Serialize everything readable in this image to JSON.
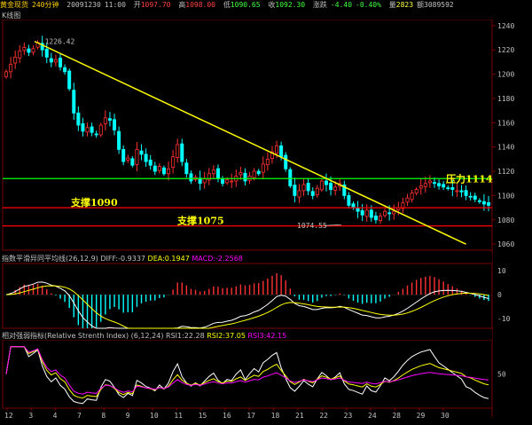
{
  "header": {
    "instrument": "黄金现货",
    "period": "240分钟",
    "date": "20091230",
    "time": "11:00",
    "open_label": "开",
    "open": "1097.70",
    "high_label": "高",
    "high": "1098.00",
    "low_label": "低",
    "low": "1090.65",
    "close_label": "收",
    "close": "1092.30",
    "change_label": "涨跌",
    "change": "-4.40",
    "change_pct": "-0.40%",
    "vol_label": "量",
    "vol": "2823",
    "amount_label": "额",
    "amount": "3089592"
  },
  "colors": {
    "up": "#ff3030",
    "down": "#00ffff",
    "grid": "#7a0000",
    "trend": "#ffff00",
    "resistance": "#00ff00",
    "support": "#ff0000",
    "dif": "#ffffff",
    "dea": "#ffff00",
    "macd": "#ff00ff",
    "rsi1": "#ffffff",
    "rsi2": "#ffff00",
    "rsi3": "#ff00ff"
  },
  "chart_data": [
    {
      "type": "candlestick",
      "title": "K线图",
      "ylim": [
        1055,
        1245
      ],
      "yticks": [
        1060,
        1080,
        1100,
        1120,
        1140,
        1160,
        1180,
        1200,
        1220,
        1240
      ],
      "high_marker": "1226.42",
      "low_marker": "1074.55",
      "resistance": {
        "value": 1114,
        "label": "压力1114"
      },
      "supports": [
        {
          "value": 1090,
          "label": "支撑1090"
        },
        {
          "value": 1075,
          "label": "支撑1075"
        }
      ],
      "trendline": {
        "from": [
          0,
          1227
        ],
        "to": [
          102,
          1060
        ]
      },
      "closes": [
        1202,
        1208,
        1214,
        1219,
        1222,
        1218,
        1221,
        1226,
        1220,
        1214,
        1210,
        1212,
        1206,
        1202,
        1188,
        1168,
        1158,
        1153,
        1156,
        1152,
        1150,
        1158,
        1164,
        1162,
        1154,
        1138,
        1128,
        1131,
        1125,
        1138,
        1134,
        1128,
        1125,
        1120,
        1124,
        1118,
        1122,
        1132,
        1142,
        1128,
        1118,
        1112,
        1115,
        1110,
        1114,
        1118,
        1121,
        1114,
        1110,
        1113,
        1112,
        1116,
        1119,
        1112,
        1116,
        1120,
        1118,
        1126,
        1130,
        1136,
        1141,
        1132,
        1122,
        1108,
        1100,
        1104,
        1109,
        1104,
        1100,
        1106,
        1112,
        1109,
        1105,
        1107,
        1110,
        1100,
        1092,
        1090,
        1087,
        1084,
        1088,
        1082,
        1080,
        1083,
        1087,
        1085,
        1087,
        1090,
        1094,
        1098,
        1102,
        1105,
        1108,
        1110,
        1112,
        1110,
        1108,
        1107,
        1106,
        1105,
        1104,
        1103,
        1100,
        1099,
        1097,
        1095,
        1093,
        1092
      ]
    },
    {
      "type": "macd",
      "title": "指数平滑异同平均线",
      "params": "(26,12,9)",
      "dif_label": "DIFF:",
      "dif": "-0.9337",
      "dea_label": "DEA:",
      "dea": "0.1947",
      "macd_label": "MACD:",
      "macd": "-2.2568",
      "ylim": [
        -14,
        13
      ],
      "yticks": [
        10,
        0,
        -10
      ]
    },
    {
      "type": "rsi",
      "title": "相对强弱指标(Relative Strenth Index)",
      "params": "(6,12,24)",
      "rsi1_label": "RSI1:",
      "rsi1": "22.28",
      "rsi2_label": "RSI2:",
      "rsi2": "37.05",
      "rsi3_label": "RSI3:",
      "rsi3": "42.15",
      "ylim": [
        0,
        100
      ],
      "yticks": [
        50
      ]
    }
  ],
  "x_axis": {
    "ticks": [
      "12",
      "3",
      "4",
      "7",
      "8",
      "9",
      "10",
      "11",
      "15",
      "16",
      "17",
      "18",
      "21",
      "22",
      "23",
      "24",
      "28",
      "29",
      "30"
    ]
  }
}
